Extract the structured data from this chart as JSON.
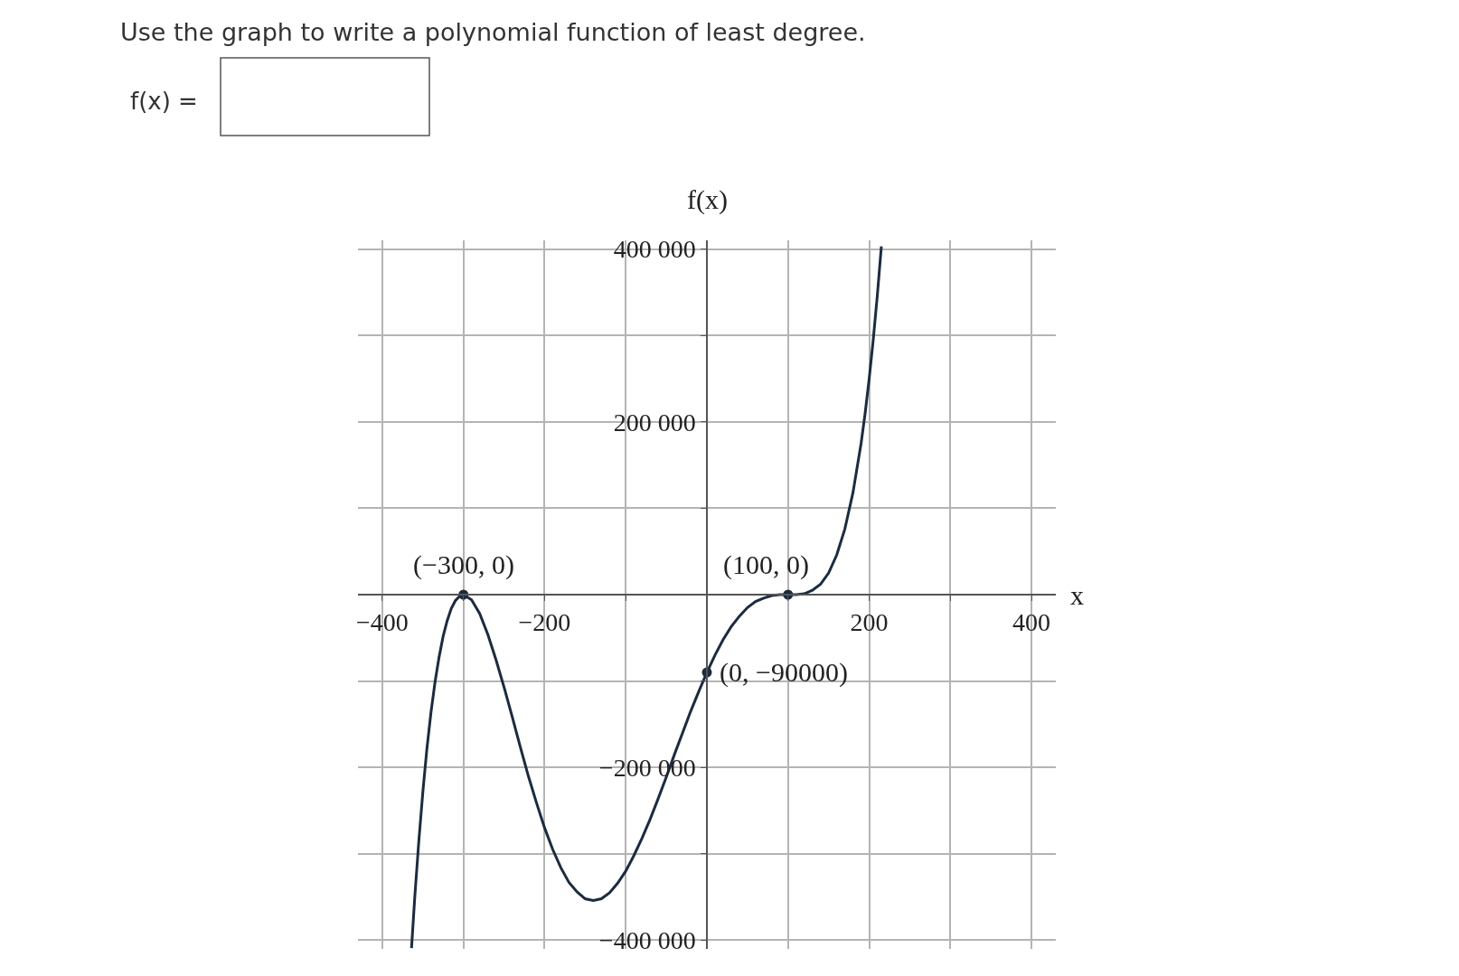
{
  "chart_data": {
    "type": "line",
    "title": "Use the graph to write a polynomial function of least degree.",
    "xlabel": "x",
    "ylabel": "f(x)",
    "series": [
      {
        "color": "#1c2b3f",
        "line_style": "solid",
        "marker": "none",
        "x": [
          -364,
          -360,
          -355,
          -350,
          -345,
          -340,
          -335,
          -330,
          -325,
          -320,
          -315,
          -310,
          -305,
          -300,
          -290,
          -280,
          -270,
          -260,
          -250,
          -240,
          -230,
          -220,
          -210,
          -200,
          -190,
          -180,
          -170,
          -160,
          -150,
          -140,
          -130,
          -120,
          -110,
          -100,
          -90,
          -80,
          -70,
          -60,
          -50,
          -40,
          -30,
          -20,
          -10,
          0,
          10,
          20,
          30,
          40,
          50,
          60,
          70,
          80,
          90,
          100,
          110,
          120,
          130,
          140,
          150,
          160,
          170,
          180,
          190,
          195,
          200,
          205,
          210,
          215
        ],
        "values": [
          -409000,
          -350000,
          -285000,
          -228000,
          -178000,
          -136000,
          -101000,
          -72000,
          -48000,
          -30000,
          -16000,
          -7000,
          -2000,
          0,
          -6000,
          -22000,
          -46000,
          -75000,
          -107000,
          -141000,
          -176000,
          -210000,
          -241000,
          -270000,
          -295000,
          -316000,
          -333000,
          -344000,
          -352000,
          -354000,
          -352000,
          -345000,
          -334000,
          -320000,
          -302000,
          -282000,
          -260000,
          -236000,
          -211000,
          -185000,
          -160000,
          -135000,
          -112000,
          -90000,
          -70000,
          -52000,
          -37000,
          -25000,
          -15000,
          -8000,
          -4000,
          -1000,
          0,
          0,
          0,
          1000,
          5000,
          12000,
          25000,
          46000,
          76000,
          118000,
          175000,
          210000,
          250000,
          295000,
          346000,
          403000
        ]
      },
      {
        "type": "scatter",
        "color": "#1c2b3f",
        "marker": "circle",
        "x": [
          -300,
          100,
          0
        ],
        "values": [
          0,
          0,
          -90000
        ]
      }
    ],
    "xlim": [
      -430,
      430
    ],
    "ylim": [
      -410000,
      410000
    ],
    "xticks": [
      {
        "value": -400,
        "label": "−400"
      },
      {
        "value": -300,
        "label": null
      },
      {
        "value": -200,
        "label": "−200"
      },
      {
        "value": -100,
        "label": null
      },
      {
        "value": 0,
        "label": null
      },
      {
        "value": 100,
        "label": null
      },
      {
        "value": 200,
        "label": "200"
      },
      {
        "value": 300,
        "label": null
      },
      {
        "value": 400,
        "label": "400"
      }
    ],
    "yticks": [
      {
        "value": -400000,
        "label": "−400 000"
      },
      {
        "value": -300000,
        "label": null
      },
      {
        "value": -200000,
        "label": "−200 000"
      },
      {
        "value": -100000,
        "label": null
      },
      {
        "value": 0,
        "label": null
      },
      {
        "value": 100000,
        "label": null
      },
      {
        "value": 200000,
        "label": "200 000"
      },
      {
        "value": 300000,
        "label": null
      },
      {
        "value": 400000,
        "label": "400 000"
      }
    ],
    "grid": true,
    "annotations": [
      "f(x) =",
      {
        "text": "(−300, 0)",
        "x": -300,
        "y": 0
      },
      {
        "text": "(100, 0)",
        "x": 100,
        "y": 0
      },
      {
        "text": "(0, −90000)",
        "x": 0,
        "y": -90000
      }
    ]
  }
}
